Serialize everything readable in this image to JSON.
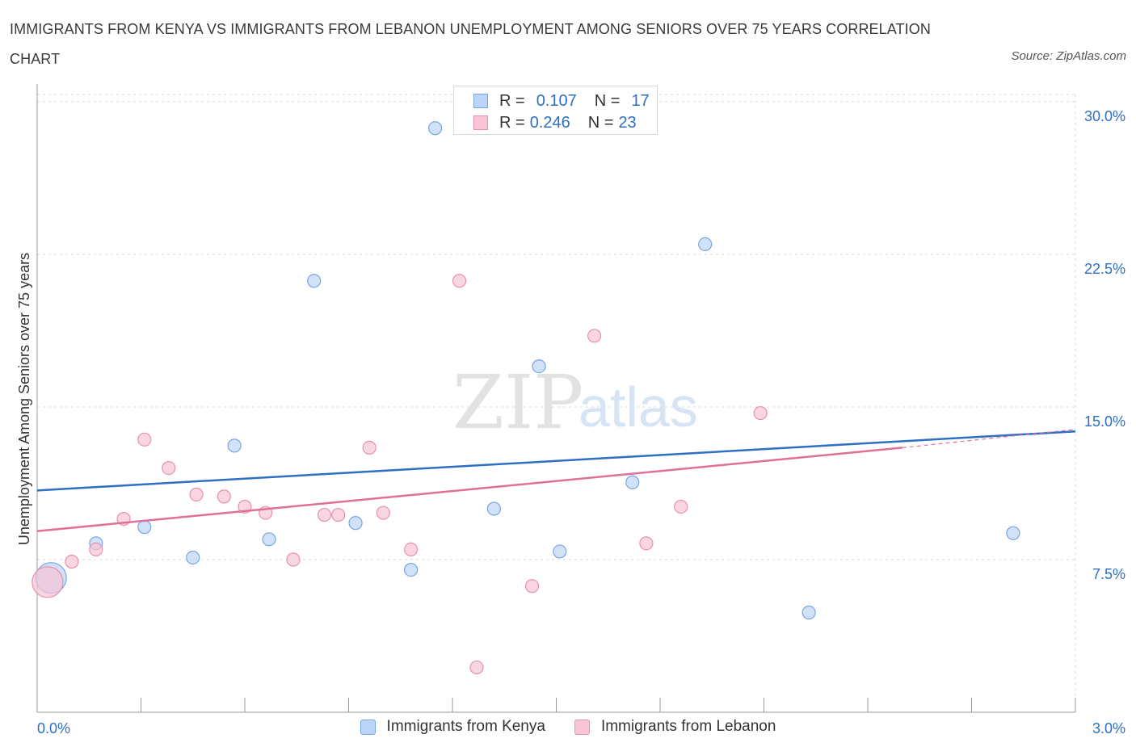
{
  "header": {
    "title": "IMMIGRANTS FROM KENYA VS IMMIGRANTS FROM LEBANON UNEMPLOYMENT AMONG SENIORS OVER 75 YEARS CORRELATION CHART",
    "source": "Source: ZipAtlas.com"
  },
  "legend": {
    "kenya": {
      "r_label": "R =",
      "r_value": "0.107",
      "n_label": "N =",
      "n_value": "17"
    },
    "lebanon": {
      "r_label": "R =",
      "r_value": "0.246",
      "n_label": "N =",
      "n_value": "23"
    }
  },
  "bottom_legend": {
    "kenya": "Immigrants from Kenya",
    "lebanon": "Immigrants from Lebanon"
  },
  "watermark": {
    "zip": "ZIP",
    "atlas": "atlas"
  },
  "colors": {
    "kenya_fill": "#bcd4f5",
    "kenya_stroke": "#7aa6e0",
    "kenya_line": "#2e6fc4",
    "lebanon_fill": "#f7c5d4",
    "lebanon_stroke": "#e890ae",
    "lebanon_line": "#e0709a",
    "axis_text": "#2e6fc4",
    "grid": "#d9d9d9"
  },
  "chart_data": {
    "type": "scatter",
    "title": "IMMIGRANTS FROM KENYA VS IMMIGRANTS FROM LEBANON UNEMPLOYMENT AMONG SENIORS OVER 75 YEARS CORRELATION CHART",
    "xlabel": "",
    "ylabel": "Unemployment Among Seniors over 75 years",
    "xlim": [
      0,
      3.0
    ],
    "ylim": [
      0,
      30.0
    ],
    "x_tick_labels": [
      "0.0%",
      "3.0%"
    ],
    "y_ticks": [
      7.5,
      15.0,
      22.5,
      30.0
    ],
    "y_tick_labels": [
      "7.5%",
      "15.0%",
      "22.5%",
      "30.0%"
    ],
    "series": [
      {
        "name": "Immigrants from Kenya",
        "points": [
          {
            "x": 0.04,
            "y": 6.6,
            "size": "large"
          },
          {
            "x": 0.17,
            "y": 8.3
          },
          {
            "x": 0.31,
            "y": 9.1
          },
          {
            "x": 0.45,
            "y": 7.6
          },
          {
            "x": 0.57,
            "y": 13.1
          },
          {
            "x": 0.67,
            "y": 8.5
          },
          {
            "x": 0.8,
            "y": 21.2
          },
          {
            "x": 0.92,
            "y": 9.3
          },
          {
            "x": 1.08,
            "y": 7.0
          },
          {
            "x": 1.15,
            "y": 28.7
          },
          {
            "x": 1.32,
            "y": 10.0
          },
          {
            "x": 1.45,
            "y": 17.0
          },
          {
            "x": 1.51,
            "y": 7.9
          },
          {
            "x": 1.72,
            "y": 11.3
          },
          {
            "x": 1.93,
            "y": 23.0
          },
          {
            "x": 2.23,
            "y": 4.9
          },
          {
            "x": 2.82,
            "y": 8.8
          }
        ],
        "trend": {
          "x": [
            0.0,
            3.0
          ],
          "y": [
            10.9,
            13.8
          ]
        }
      },
      {
        "name": "Immigrants from Lebanon",
        "points": [
          {
            "x": 0.03,
            "y": 6.4,
            "size": "large"
          },
          {
            "x": 0.1,
            "y": 7.4
          },
          {
            "x": 0.17,
            "y": 8.0
          },
          {
            "x": 0.25,
            "y": 9.5
          },
          {
            "x": 0.31,
            "y": 13.4
          },
          {
            "x": 0.38,
            "y": 12.0
          },
          {
            "x": 0.46,
            "y": 10.7
          },
          {
            "x": 0.54,
            "y": 10.6
          },
          {
            "x": 0.6,
            "y": 10.1
          },
          {
            "x": 0.66,
            "y": 9.8
          },
          {
            "x": 0.74,
            "y": 7.5
          },
          {
            "x": 0.83,
            "y": 9.7
          },
          {
            "x": 0.87,
            "y": 9.7
          },
          {
            "x": 0.96,
            "y": 13.0
          },
          {
            "x": 1.0,
            "y": 9.8
          },
          {
            "x": 1.08,
            "y": 8.0
          },
          {
            "x": 1.22,
            "y": 21.2
          },
          {
            "x": 1.27,
            "y": 2.2
          },
          {
            "x": 1.43,
            "y": 6.2
          },
          {
            "x": 1.61,
            "y": 18.5
          },
          {
            "x": 1.76,
            "y": 8.3
          },
          {
            "x": 1.86,
            "y": 10.1
          },
          {
            "x": 2.09,
            "y": 14.7
          }
        ],
        "trend": {
          "x": [
            0.0,
            2.5
          ],
          "y": [
            8.9,
            13.0
          ]
        },
        "trend_dashed": {
          "x": [
            2.5,
            3.0
          ],
          "y": [
            13.0,
            13.9
          ]
        }
      }
    ]
  }
}
